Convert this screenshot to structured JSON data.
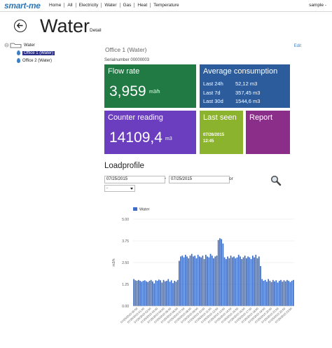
{
  "app": {
    "logo": "smart-me",
    "nav": [
      "Home",
      "All",
      "Electricity",
      "Water",
      "Gas",
      "Heat",
      "Temperature"
    ],
    "user": "sample -"
  },
  "page": {
    "title": "Water",
    "subtitle": "Detail",
    "edit": "Edit"
  },
  "tree": {
    "root": "Water",
    "items": [
      "Office 1 (Water)",
      "Office 2 (Water)"
    ]
  },
  "meter": {
    "name": "Office 1 (Water)",
    "serial": "Serialnumber 00000003"
  },
  "tiles": {
    "flow": {
      "title": "Flow rate",
      "value": "3,959",
      "unit": "m3/h",
      "color": "#217a43"
    },
    "avg": {
      "title": "Average consumption",
      "rows": [
        {
          "label": "Last 24h",
          "value": "52,12 m3"
        },
        {
          "label": "Last 7d",
          "value": "357,45 m3"
        },
        {
          "label": "Last 30d",
          "value": "1544,6 m3"
        }
      ],
      "color": "#2d5c9c"
    },
    "counter": {
      "title": "Counter reading",
      "value": "14109,4",
      "unit": "m3",
      "color": "#6a3ebf"
    },
    "seen": {
      "title": "Last seen",
      "date": "07/26/2015",
      "time": "12:45",
      "color": "#8cb32d"
    },
    "report": {
      "title": "Report",
      "color": "#8b2e8a"
    }
  },
  "loadprofile": {
    "title": "Loadprofile",
    "from": "07/25/2015",
    "to": "07/25/2015",
    "or": "or",
    "interval": "-"
  },
  "chart_data": {
    "type": "bar",
    "series": [
      {
        "name": "Water",
        "color": "#3e6dc6",
        "values": [
          1.55,
          1.48,
          1.45,
          1.5,
          1.45,
          1.4,
          1.45,
          1.48,
          1.42,
          1.38,
          1.45,
          1.5,
          1.42,
          1.3,
          1.48,
          1.45,
          1.52,
          1.48,
          1.35,
          1.5,
          1.42,
          1.45,
          1.55,
          1.4,
          1.48,
          1.32,
          1.45,
          1.4,
          1.5,
          2.6,
          2.85,
          2.9,
          2.8,
          2.95,
          2.85,
          2.75,
          2.9,
          3.0,
          2.85,
          2.9,
          2.75,
          2.95,
          2.85,
          2.8,
          2.9,
          2.7,
          2.95,
          2.85,
          2.8,
          3.0,
          2.9,
          2.75,
          2.85,
          2.9,
          3.8,
          3.9,
          3.85,
          3.6,
          2.8,
          2.7,
          2.85,
          2.75,
          2.9,
          2.8,
          2.85,
          2.75,
          2.8,
          2.95,
          2.85,
          2.7,
          2.8,
          2.9,
          2.75,
          2.85,
          2.8,
          2.7,
          2.9,
          2.8,
          2.95,
          2.75,
          2.85,
          2.3,
          1.55,
          1.45,
          1.5,
          1.4,
          1.55,
          1.45,
          1.38,
          1.5,
          1.42,
          1.48,
          1.35,
          1.45,
          1.5,
          1.4,
          1.48,
          1.42,
          1.5,
          1.45,
          1.38,
          1.45,
          1.5
        ]
      }
    ],
    "x_ticks": [
      "07/25/2015 00:00",
      "07/25/2015 01:00",
      "07/25/2015 02:00",
      "07/25/2015 03:00",
      "07/25/2015 04:00",
      "07/25/2015 05:00",
      "07/25/2015 06:00",
      "07/25/2015 07:00",
      "07/25/2015 08:00",
      "07/25/2015 09:00",
      "07/25/2015 10:00",
      "07/25/2015 11:00",
      "07/25/2015 12:00",
      "07/25/2015 13:00",
      "07/25/2015 14:00",
      "07/25/2015 15:00",
      "07/25/2015 16:00",
      "07/25/2015 17:00",
      "07/25/2015 18:00",
      "07/25/2015 19:00",
      "07/25/2015 20:00",
      "07/25/2015 21:00",
      "07/25/2015 22:00",
      "07/25/2015 23:00"
    ],
    "y_ticks": [
      "5.00",
      "3.75",
      "2.50",
      "1.25",
      "0.00"
    ],
    "ylabel": "m3/h",
    "ylim": [
      0,
      5
    ],
    "legend": "top-left"
  }
}
